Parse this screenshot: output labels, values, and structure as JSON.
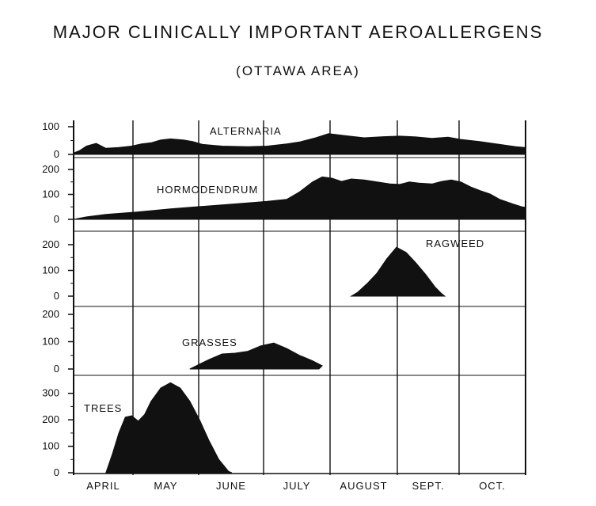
{
  "title": "MAJOR CLINICALLY IMPORTANT AEROALLERGENS",
  "subtitle": "(OTTAWA AREA)",
  "chart_data": {
    "type": "area",
    "months": [
      "APRIL",
      "MAY",
      "JUNE",
      "JULY",
      "AUGUST",
      "SEPT.",
      "OCT."
    ],
    "x_unit": "month (fractional, 0 = start of April, 7 = end of October)",
    "grid": "vertical lines at month boundaries",
    "panels": [
      {
        "name": "ALTERNARIA",
        "ylim": [
          0,
          100
        ],
        "yticks": [
          0,
          100
        ],
        "points": [
          [
            0,
            5
          ],
          [
            0.1,
            15
          ],
          [
            0.2,
            30
          ],
          [
            0.35,
            40
          ],
          [
            0.5,
            22
          ],
          [
            0.7,
            25
          ],
          [
            0.9,
            30
          ],
          [
            1.05,
            38
          ],
          [
            1.2,
            42
          ],
          [
            1.35,
            52
          ],
          [
            1.5,
            56
          ],
          [
            1.7,
            52
          ],
          [
            1.85,
            46
          ],
          [
            2.0,
            36
          ],
          [
            2.3,
            30
          ],
          [
            2.7,
            28
          ],
          [
            3.0,
            30
          ],
          [
            3.3,
            38
          ],
          [
            3.5,
            45
          ],
          [
            3.75,
            60
          ],
          [
            3.95,
            75
          ],
          [
            4.2,
            68
          ],
          [
            4.5,
            60
          ],
          [
            4.8,
            64
          ],
          [
            5.05,
            66
          ],
          [
            5.3,
            63
          ],
          [
            5.55,
            58
          ],
          [
            5.8,
            62
          ],
          [
            6.0,
            54
          ],
          [
            6.3,
            46
          ],
          [
            6.6,
            36
          ],
          [
            6.85,
            28
          ],
          [
            7.0,
            25
          ]
        ]
      },
      {
        "name": "HORMODENDRUM",
        "ylim": [
          0,
          200
        ],
        "yticks": [
          0,
          100,
          200
        ],
        "points": [
          [
            0,
            0
          ],
          [
            0.2,
            10
          ],
          [
            0.5,
            20
          ],
          [
            1.0,
            30
          ],
          [
            1.5,
            42
          ],
          [
            2.0,
            52
          ],
          [
            2.5,
            62
          ],
          [
            3.0,
            72
          ],
          [
            3.3,
            80
          ],
          [
            3.5,
            110
          ],
          [
            3.7,
            150
          ],
          [
            3.85,
            170
          ],
          [
            4.0,
            165
          ],
          [
            4.15,
            152
          ],
          [
            4.3,
            162
          ],
          [
            4.5,
            158
          ],
          [
            4.7,
            150
          ],
          [
            4.9,
            142
          ],
          [
            5.05,
            140
          ],
          [
            5.2,
            150
          ],
          [
            5.35,
            145
          ],
          [
            5.55,
            142
          ],
          [
            5.7,
            152
          ],
          [
            5.85,
            158
          ],
          [
            6.0,
            150
          ],
          [
            6.15,
            130
          ],
          [
            6.3,
            115
          ],
          [
            6.45,
            102
          ],
          [
            6.6,
            80
          ],
          [
            6.8,
            62
          ],
          [
            6.95,
            50
          ],
          [
            7.0,
            48
          ]
        ]
      },
      {
        "name": "RAGWEED",
        "ylim": [
          0,
          200
        ],
        "yticks": [
          0,
          100,
          200
        ],
        "points": [
          [
            4.3,
            0
          ],
          [
            4.4,
            15
          ],
          [
            4.55,
            50
          ],
          [
            4.7,
            90
          ],
          [
            4.85,
            145
          ],
          [
            5.0,
            190
          ],
          [
            5.15,
            170
          ],
          [
            5.3,
            130
          ],
          [
            5.45,
            85
          ],
          [
            5.6,
            35
          ],
          [
            5.7,
            10
          ],
          [
            5.75,
            0
          ]
        ]
      },
      {
        "name": "GRASSES",
        "ylim": [
          0,
          200
        ],
        "yticks": [
          0,
          100,
          200
        ],
        "points": [
          [
            1.8,
            0
          ],
          [
            1.9,
            12
          ],
          [
            2.1,
            35
          ],
          [
            2.3,
            55
          ],
          [
            2.5,
            58
          ],
          [
            2.7,
            65
          ],
          [
            2.9,
            85
          ],
          [
            3.1,
            95
          ],
          [
            3.3,
            75
          ],
          [
            3.5,
            50
          ],
          [
            3.7,
            30
          ],
          [
            3.85,
            12
          ],
          [
            3.8,
            0
          ]
        ]
      },
      {
        "name": "TREES",
        "ylim": [
          0,
          350
        ],
        "yticks": [
          0,
          100,
          200,
          300
        ],
        "points": [
          [
            0.5,
            0
          ],
          [
            0.6,
            70
          ],
          [
            0.7,
            150
          ],
          [
            0.8,
            210
          ],
          [
            0.9,
            215
          ],
          [
            1.0,
            195
          ],
          [
            1.1,
            220
          ],
          [
            1.2,
            270
          ],
          [
            1.35,
            320
          ],
          [
            1.5,
            340
          ],
          [
            1.65,
            320
          ],
          [
            1.8,
            270
          ],
          [
            1.95,
            200
          ],
          [
            2.1,
            120
          ],
          [
            2.25,
            50
          ],
          [
            2.4,
            5
          ],
          [
            2.45,
            0
          ]
        ]
      }
    ]
  }
}
